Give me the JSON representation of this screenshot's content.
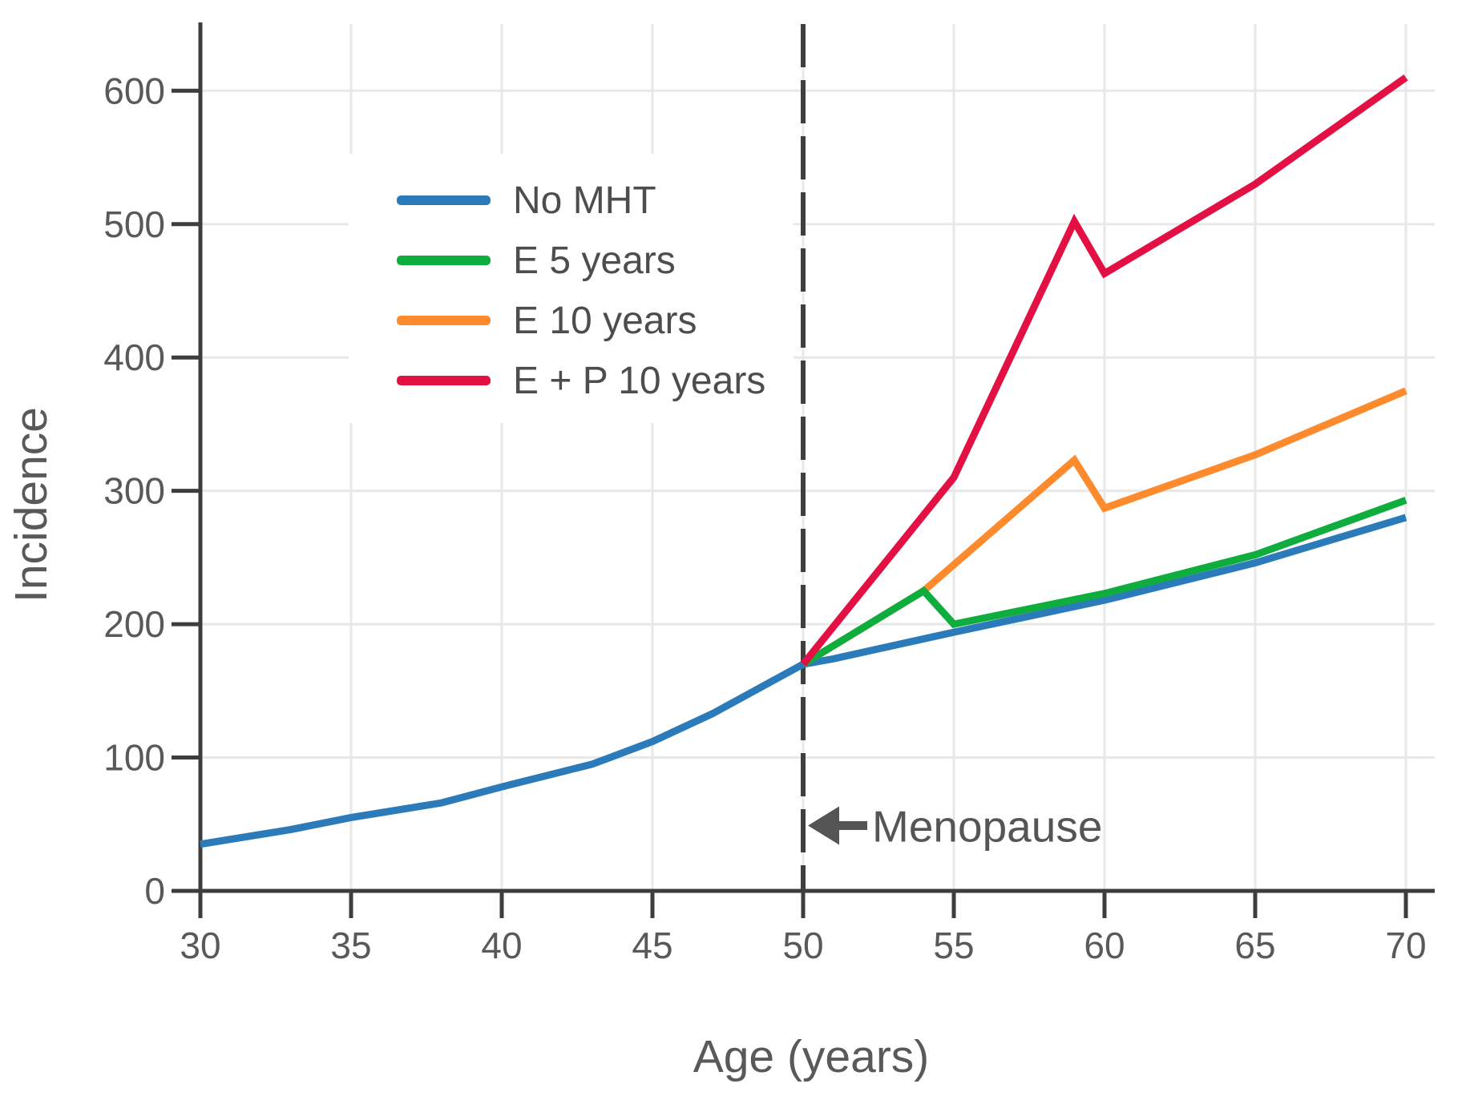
{
  "page": {
    "background": "#ffffff"
  },
  "chart_data": {
    "type": "line",
    "title": "",
    "xlabel": "Age (years)",
    "ylabel": "Incidence",
    "xlim": [
      30,
      70.9
    ],
    "ylim": [
      0,
      650
    ],
    "xticks": [
      30,
      35,
      40,
      45,
      50,
      55,
      60,
      65,
      70
    ],
    "yticks": [
      0,
      100,
      200,
      300,
      400,
      500,
      600
    ],
    "grid": true,
    "legend": {
      "position": "upper-left-inside",
      "background": "#ffffff"
    },
    "annotation": {
      "text": "Menopause",
      "arrow_direction": "left",
      "line_x": 50,
      "arrow_y": 49
    },
    "colors": {
      "axis": "#3d3d3d",
      "grid": "#e8e8e8",
      "tick_label": "#595959",
      "axis_title": "#595959",
      "annotation_text": "#555555",
      "dashed_line": "#3f3f3f",
      "legend_text": "#4d4d4d"
    },
    "series": [
      {
        "name": "No MHT",
        "color": "#2b7bba",
        "points": [
          [
            30,
            35
          ],
          [
            33,
            46
          ],
          [
            35,
            55
          ],
          [
            38,
            66
          ],
          [
            40,
            78
          ],
          [
            43,
            95
          ],
          [
            45,
            112
          ],
          [
            47,
            133
          ],
          [
            50,
            170
          ],
          [
            51,
            174
          ],
          [
            55,
            194
          ],
          [
            60,
            218
          ],
          [
            65,
            246
          ],
          [
            70,
            280
          ]
        ]
      },
      {
        "name": "E 5 years",
        "color": "#0ead3e",
        "points": [
          [
            50,
            170
          ],
          [
            54,
            225
          ],
          [
            55,
            200
          ],
          [
            60,
            223
          ],
          [
            65,
            252
          ],
          [
            70,
            293
          ]
        ]
      },
      {
        "name": "E 10 years",
        "color": "#fd8b2d",
        "points": [
          [
            50,
            170
          ],
          [
            54,
            225
          ],
          [
            59,
            323
          ],
          [
            60,
            287
          ],
          [
            65,
            327
          ],
          [
            70,
            375
          ]
        ]
      },
      {
        "name": "E + P 10 years",
        "color": "#e31143",
        "points": [
          [
            50,
            170
          ],
          [
            55,
            310
          ],
          [
            59,
            502
          ],
          [
            60,
            463
          ],
          [
            65,
            530
          ],
          [
            70,
            610
          ]
        ]
      }
    ]
  }
}
